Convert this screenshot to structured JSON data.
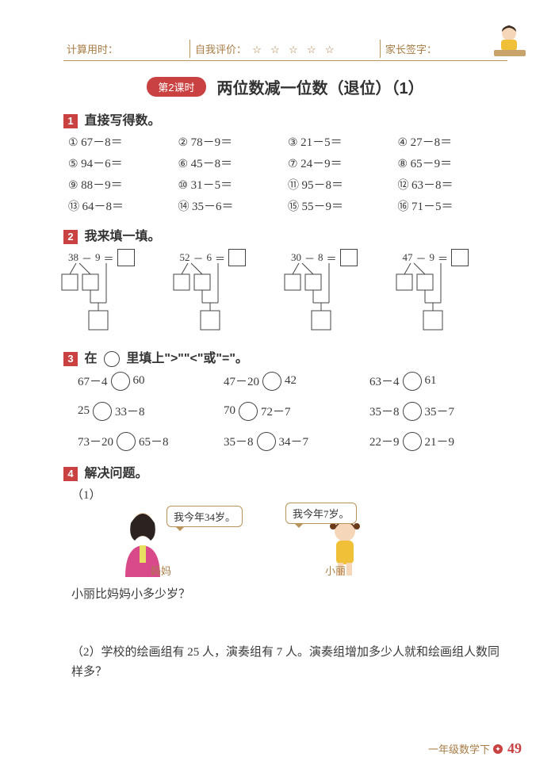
{
  "header": {
    "timer_label": "计算用时：",
    "self_eval_label": "自我评价：",
    "stars": "☆ ☆ ☆ ☆ ☆",
    "parent_sign_label": "家长签字："
  },
  "lesson": {
    "pill": "第2课时",
    "title": "两位数减一位数（退位）（1）"
  },
  "q1": {
    "num": "1",
    "title": "直接写得数。",
    "circ_nums": [
      "①",
      "②",
      "③",
      "④",
      "⑤",
      "⑥",
      "⑦",
      "⑧",
      "⑨",
      "⑩",
      "⑪",
      "⑫",
      "⑬",
      "⑭",
      "⑮",
      "⑯"
    ],
    "items": [
      "67－8＝",
      "78－9＝",
      "21－5＝",
      "27－8＝",
      "94－6＝",
      "45－8＝",
      "24－9＝",
      "65－9＝",
      "88－9＝",
      "31－5＝",
      "95－8＝",
      "63－8＝",
      "64－8＝",
      "35－6＝",
      "55－9＝",
      "71－5＝"
    ]
  },
  "q2": {
    "num": "2",
    "title": "我来填一填。",
    "trees": [
      {
        "a": "38",
        "op": "－",
        "b": "9",
        "eq": "＝"
      },
      {
        "a": "52",
        "op": "－",
        "b": "6",
        "eq": "＝"
      },
      {
        "a": "30",
        "op": "－",
        "b": "8",
        "eq": "＝"
      },
      {
        "a": "47",
        "op": "－",
        "b": "9",
        "eq": "＝"
      }
    ]
  },
  "q3": {
    "num": "3",
    "title_prefix": "在",
    "title_suffix": "里填上\">\"\"<\"或\"=\"。",
    "rows": [
      [
        "67－4",
        "60",
        "47－20",
        "42",
        "63－4",
        "61"
      ],
      [
        "25",
        "33－8",
        "70",
        "72－7",
        "35－8",
        "35－7"
      ],
      [
        "73－20",
        "65－8",
        "35－8",
        "34－7",
        "22－9",
        "21－9"
      ]
    ]
  },
  "q4": {
    "num": "4",
    "title": "解决问题。",
    "sub1_label": "（1）",
    "mom_speech": "我今年34岁。",
    "girl_speech": "我今年7岁。",
    "mom_label": "妈妈",
    "girl_label": "小丽",
    "sub1_question": "小丽比妈妈小多少岁？",
    "sub2": "（2）学校的绘画组有 25 人，演奏组有 7 人。演奏组增加多少人就和绘画组人数同样多？"
  },
  "footer": {
    "grade": "一年级数学下",
    "page": "49"
  },
  "colors": {
    "accent_red": "#c94141",
    "accent_brown": "#a87c45"
  }
}
